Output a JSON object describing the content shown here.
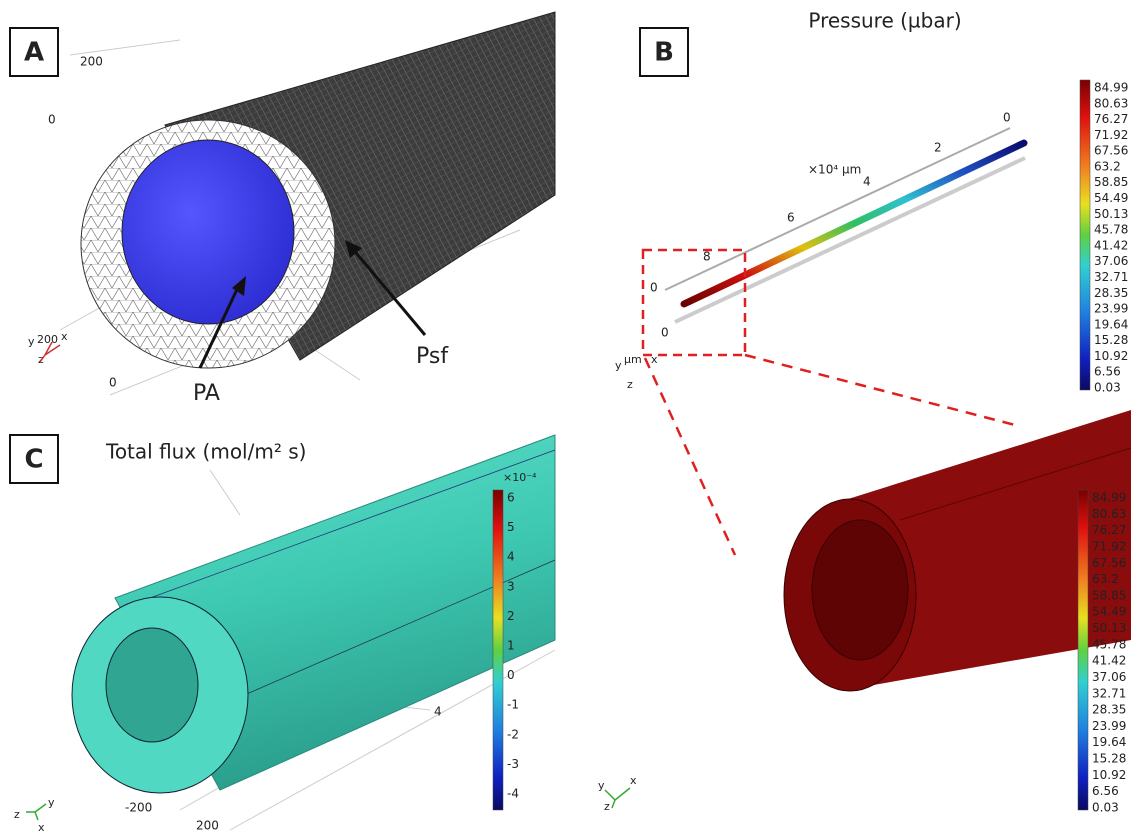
{
  "panel_a": {
    "label": "A",
    "axis_labels": [
      "200",
      "0",
      "0"
    ],
    "triad": [
      "y",
      "200",
      "x",
      "z"
    ],
    "annotations": [
      "PA",
      "Psf"
    ]
  },
  "panel_b": {
    "label": "B",
    "title": "Pressure (µbar)",
    "axis_labels": [
      "0",
      "2",
      "4",
      "6",
      "8",
      "0",
      "0"
    ],
    "axis_unit": "×10⁴ μm",
    "triad": [
      "y",
      "μm",
      "x",
      "z"
    ],
    "colorbar": [
      "84.99",
      "80.63",
      "76.27",
      "71.92",
      "67.56",
      "63.2",
      "58.85",
      "54.49",
      "50.13",
      "45.78",
      "41.42",
      "37.06",
      "32.71",
      "28.35",
      "23.99",
      "19.64",
      "15.28",
      "10.92",
      "6.56",
      "0.03"
    ],
    "inset_triad": [
      "y",
      "x",
      "z"
    ]
  },
  "panel_c": {
    "label": "C",
    "title": "Total flux (mol/m² s)",
    "colorbar_unit": "×10⁻⁴",
    "colorbar": [
      "6",
      "5",
      "4",
      "3",
      "2",
      "1",
      "0",
      "-1",
      "-2",
      "-3",
      "-4"
    ],
    "axis_labels": [
      "4",
      "-200",
      "200"
    ],
    "triad": [
      "z",
      "y",
      "x"
    ]
  }
}
